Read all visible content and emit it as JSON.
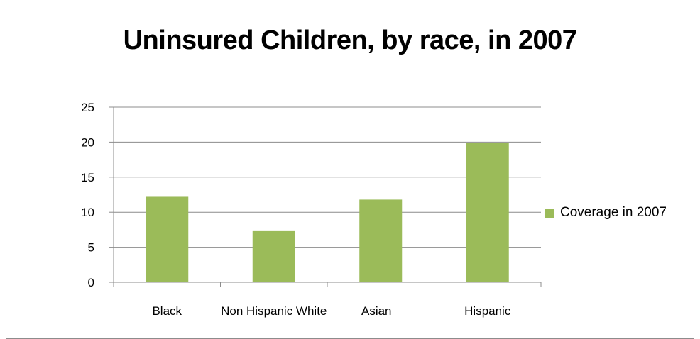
{
  "chart_data": {
    "type": "bar",
    "title": "Uninsured Children, by race, in 2007",
    "categories": [
      "Black",
      "Non Hispanic White",
      "Asian",
      "Hispanic"
    ],
    "series": [
      {
        "name": "Coverage in 2007",
        "values": [
          12.2,
          7.3,
          11.8,
          19.9
        ],
        "color": "#9bbb59"
      }
    ],
    "xlabel": "",
    "ylabel": "",
    "ylim": [
      0,
      25
    ],
    "yticks": [
      0,
      5,
      10,
      15,
      20,
      25
    ],
    "grid": true,
    "legend_position": "right"
  }
}
